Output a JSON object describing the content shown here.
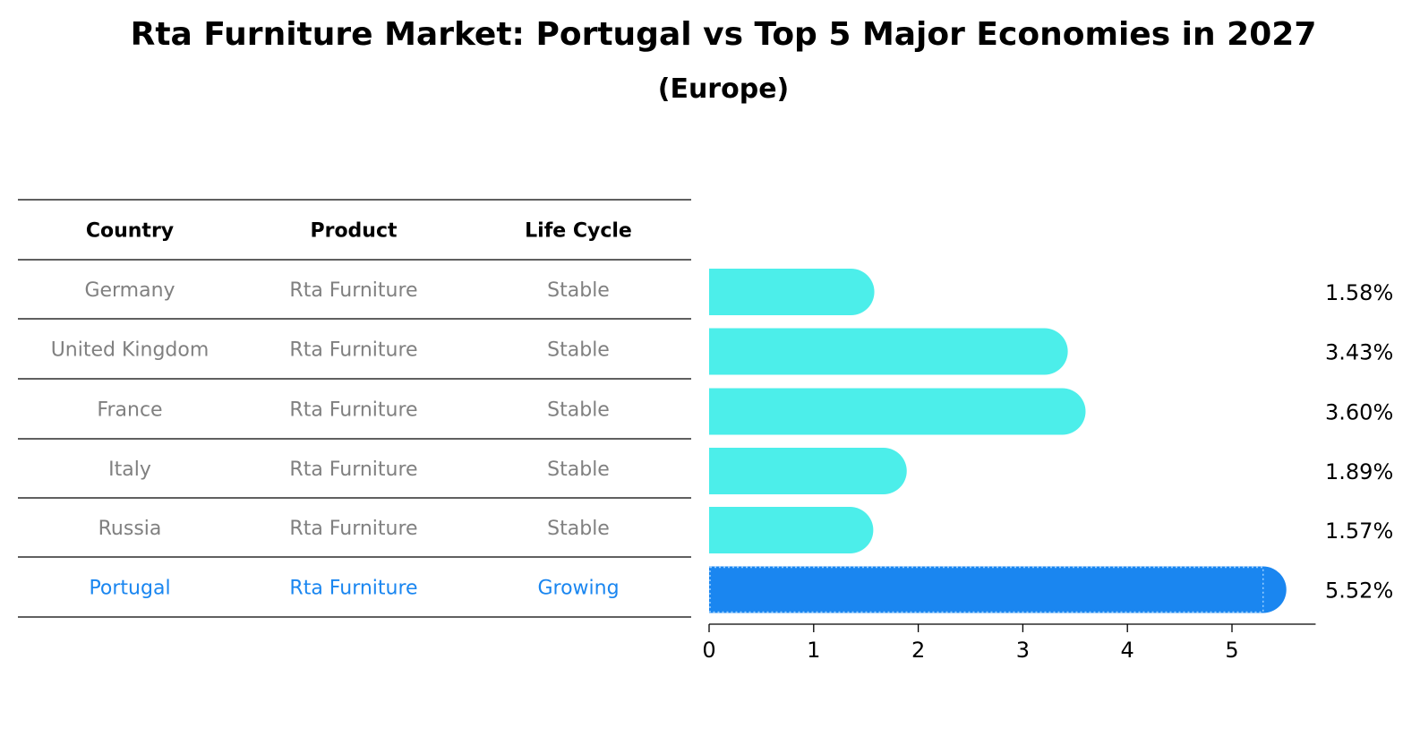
{
  "title": "Rta Furniture Market: Portugal vs Top 5 Major Economies in 2027",
  "subtitle": "(Europe)",
  "colors": {
    "highlight": "#1a86f0",
    "bar": "#4ceeea",
    "muted_text": "#808080",
    "axis": "#000000"
  },
  "table": {
    "headers": [
      "Country",
      "Product",
      "Life Cycle"
    ],
    "rows": [
      {
        "country": "Germany",
        "product": "Rta Furniture",
        "life_cycle": "Stable",
        "highlight": false
      },
      {
        "country": "United Kingdom",
        "product": "Rta Furniture",
        "life_cycle": "Stable",
        "highlight": false
      },
      {
        "country": "France",
        "product": "Rta Furniture",
        "life_cycle": "Stable",
        "highlight": false
      },
      {
        "country": "Italy",
        "product": "Rta Furniture",
        "life_cycle": "Stable",
        "highlight": false
      },
      {
        "country": "Russia",
        "product": "Rta Furniture",
        "life_cycle": "Stable",
        "highlight": false
      },
      {
        "country": "Portugal",
        "product": "Rta Furniture",
        "life_cycle": "Growing",
        "highlight": true
      }
    ]
  },
  "chart_data": {
    "type": "bar",
    "orientation": "horizontal",
    "categories": [
      "Germany",
      "United Kingdom",
      "France",
      "Italy",
      "Russia",
      "Portugal"
    ],
    "values": [
      1.58,
      3.43,
      3.6,
      1.89,
      1.57,
      5.52
    ],
    "value_labels": [
      "1.58%",
      "3.43%",
      "3.60%",
      "1.89%",
      "1.57%",
      "5.52%"
    ],
    "x_ticks": [
      0,
      1,
      2,
      3,
      4,
      5
    ],
    "xlim": [
      0,
      5.8
    ],
    "xlabel": "",
    "ylabel": "",
    "grid": false,
    "highlight_category": "Portugal"
  }
}
